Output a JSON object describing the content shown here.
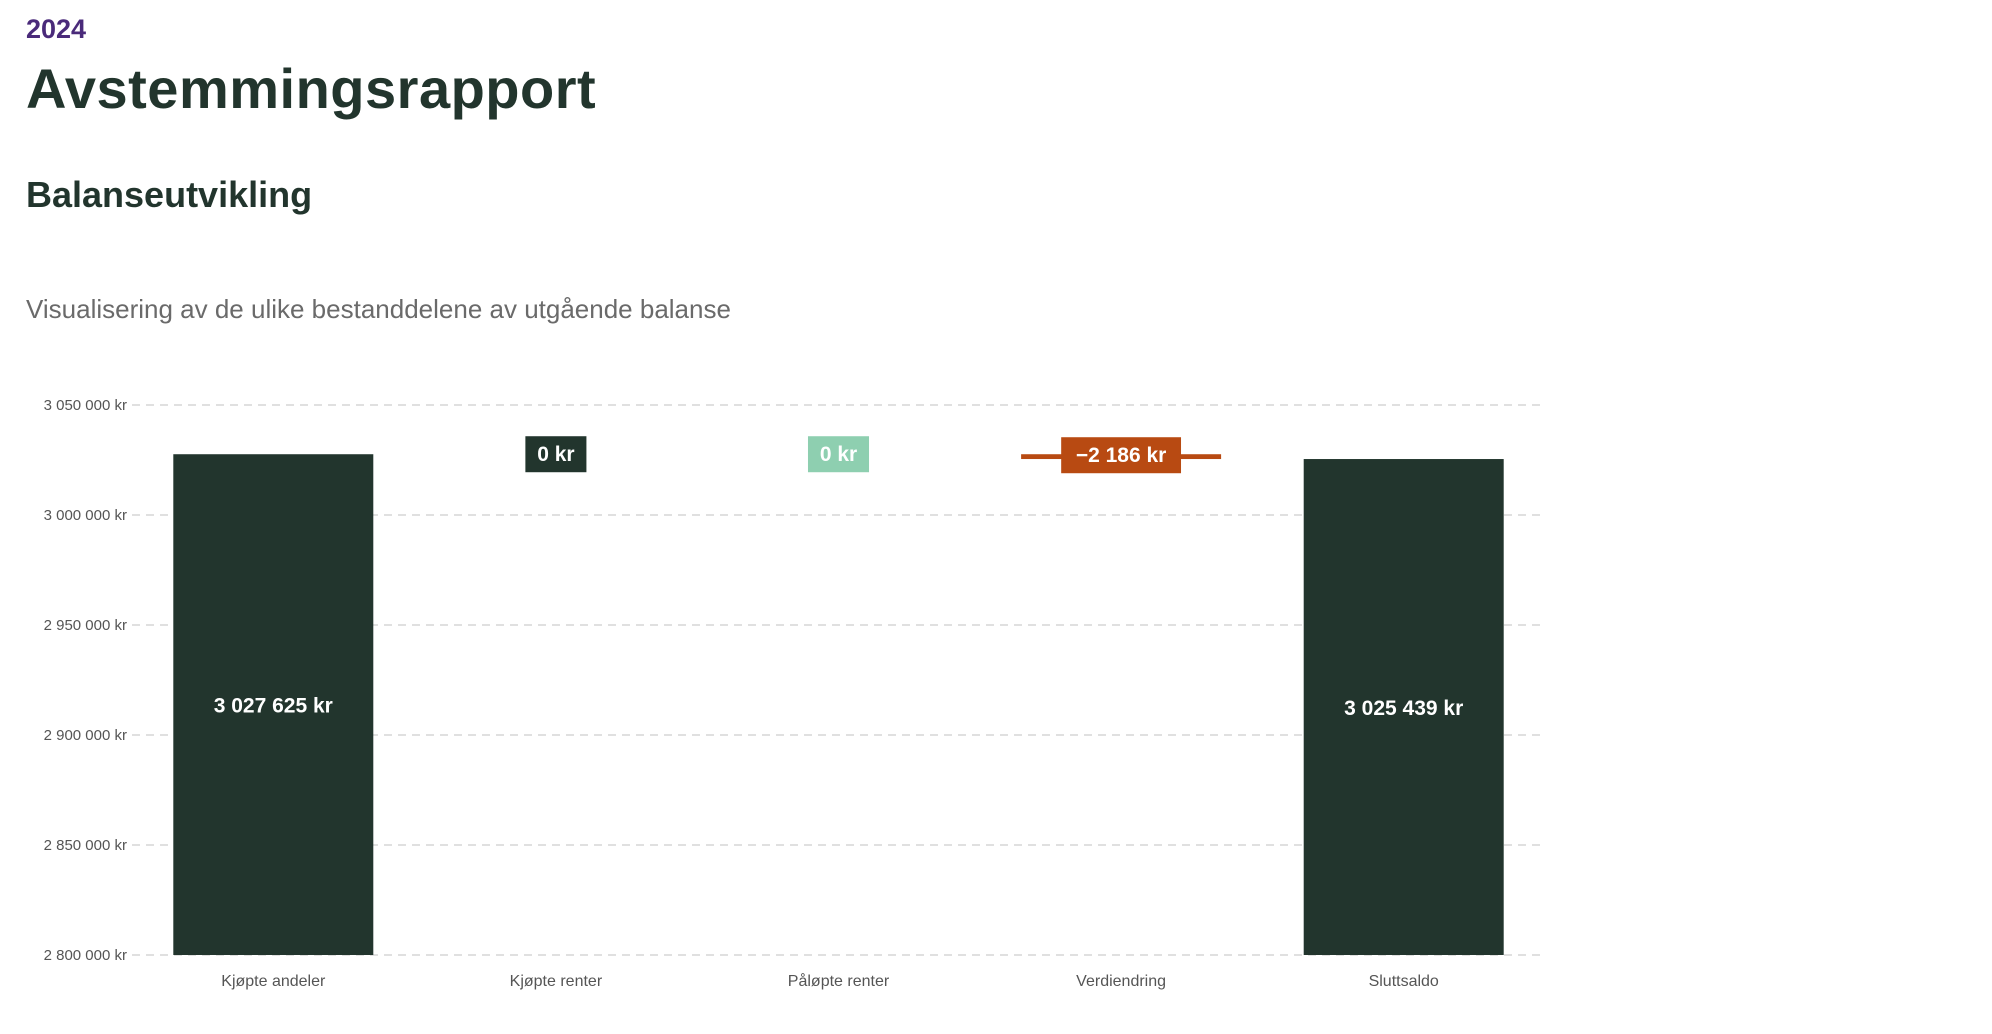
{
  "header": {
    "year": "2024",
    "title": "Avstemmingsrapport"
  },
  "section": {
    "title": "Balanseutvikling",
    "subtitle": "Visualisering av de ulike bestanddelene av utgående balanse"
  },
  "colors": {
    "dark": "#22352d",
    "mint": "#8ecfb0",
    "orange": "#b84a12",
    "grid": "#d6d6d6",
    "axis_text": "#555555",
    "title": "#22352d",
    "year": "#4a2a7a"
  },
  "chart_data": {
    "type": "bar",
    "subtype": "waterfall",
    "title": "Balanseutvikling",
    "subtitle": "Visualisering av de ulike bestanddelene av utgående balanse",
    "ylim": [
      2800000,
      3050000
    ],
    "yticks": [
      2800000,
      2850000,
      2900000,
      2950000,
      3000000,
      3050000
    ],
    "ytick_labels": [
      "2 800 000 kr",
      "2 850 000 kr",
      "2 900 000 kr",
      "2 950 000 kr",
      "3 000 000 kr",
      "3 050 000 kr"
    ],
    "grid": true,
    "categories": [
      "Kjøpte andeler",
      "Kjøpte renter",
      "Påløpte renter",
      "Verdiendring",
      "Sluttsaldo"
    ],
    "values": [
      3027625,
      0,
      0,
      -2186,
      3025439
    ],
    "kinds": [
      "total",
      "delta",
      "delta",
      "delta",
      "total"
    ],
    "value_labels": [
      "3 027 625 kr",
      "0 kr",
      "0 kr",
      "−2 186 kr",
      "3 025 439 kr"
    ],
    "bar_colors": [
      "#22352d",
      "#22352d",
      "#8ecfb0",
      "#b84a12",
      "#22352d"
    ]
  }
}
